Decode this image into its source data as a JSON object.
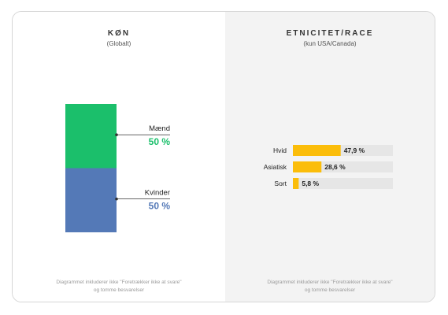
{
  "colors": {
    "male": "#1bbf6b",
    "female": "#5479b7",
    "bar": "#fbbd0a",
    "track": "#e6e6e6"
  },
  "gender": {
    "title": "KØN",
    "subtitle": "(Globalt)",
    "footnote_line1": "Diagrammet inkluderer ikke \"Foretrækker ikke at svare\"",
    "footnote_line2": "og tomme besvarelser"
  },
  "ethnicity": {
    "title": "ETNICITET/RACE",
    "subtitle": "(kun USA/Canada)",
    "footnote_line1": "Diagrammet inkluderer ikke \"Foretrækker ikke at svare\"",
    "footnote_line2": "og tomme besvarelser"
  },
  "chart_data": [
    {
      "type": "bar",
      "title": "KØN",
      "subtitle": "(Globalt)",
      "stacked": true,
      "categories": [
        "Mænd",
        "Kvinder"
      ],
      "values": [
        50,
        50
      ],
      "value_labels": [
        "50 %",
        "50 %"
      ],
      "colors": [
        "#1bbf6b",
        "#5479b7"
      ]
    },
    {
      "type": "bar",
      "orientation": "horizontal",
      "title": "ETNICITET/RACE",
      "subtitle": "(kun USA/Canada)",
      "categories": [
        "Hvid",
        "Asiatisk",
        "Sort"
      ],
      "values": [
        47.9,
        28.6,
        5.8
      ],
      "value_labels": [
        "47,9 %",
        "28,6 %",
        "5,8 %"
      ],
      "xlim": [
        0,
        100
      ]
    }
  ]
}
